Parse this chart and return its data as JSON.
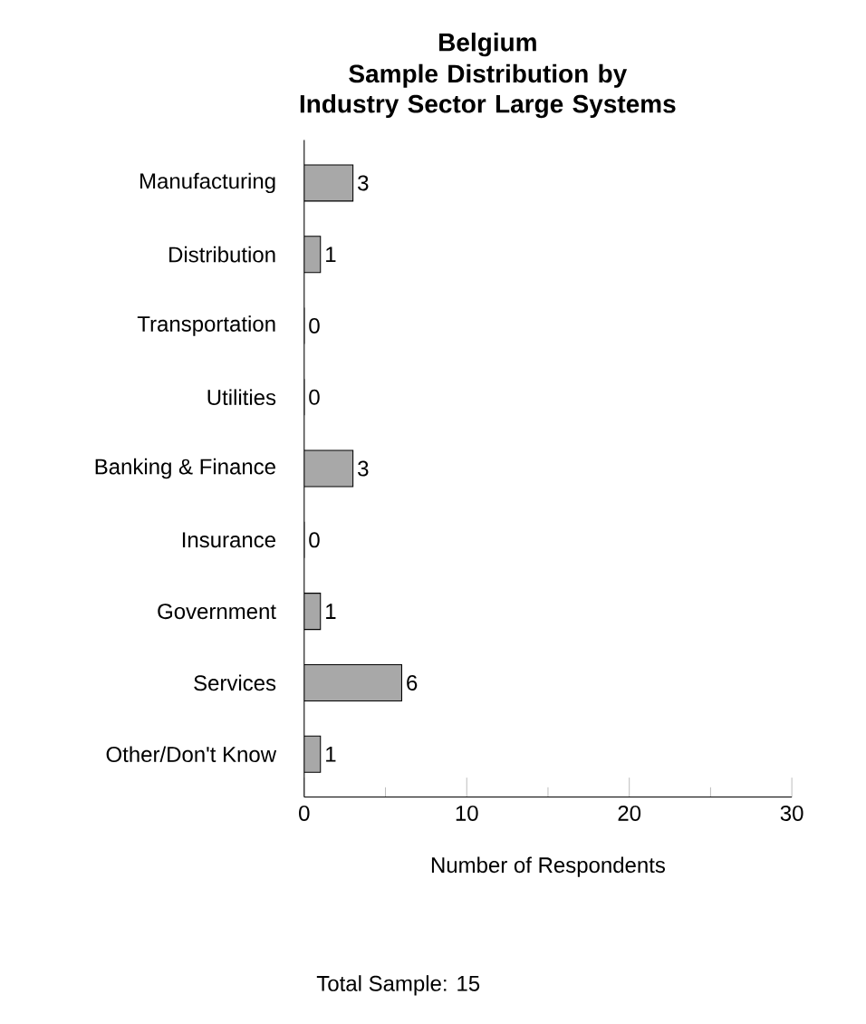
{
  "chart_data": {
    "type": "bar",
    "orientation": "horizontal",
    "title": "Belgium",
    "subtitle": "Sample Distribution by Industry Sector Large Systems",
    "categories": [
      "Manufacturing",
      "Distribution",
      "Transportation",
      "Utilities",
      "Banking & Finance",
      "Insurance",
      "Government",
      "Services",
      "Other/Don't Know"
    ],
    "values": [
      3,
      1,
      0,
      0,
      3,
      0,
      1,
      6,
      1
    ],
    "color": "#a8a8a8",
    "xlim": [
      0,
      30
    ],
    "xticks": [
      0,
      10,
      20,
      30
    ],
    "xlabel": "Number of Respondents",
    "data_labels": true,
    "annotations": [
      "Total Sample: 15"
    ]
  }
}
